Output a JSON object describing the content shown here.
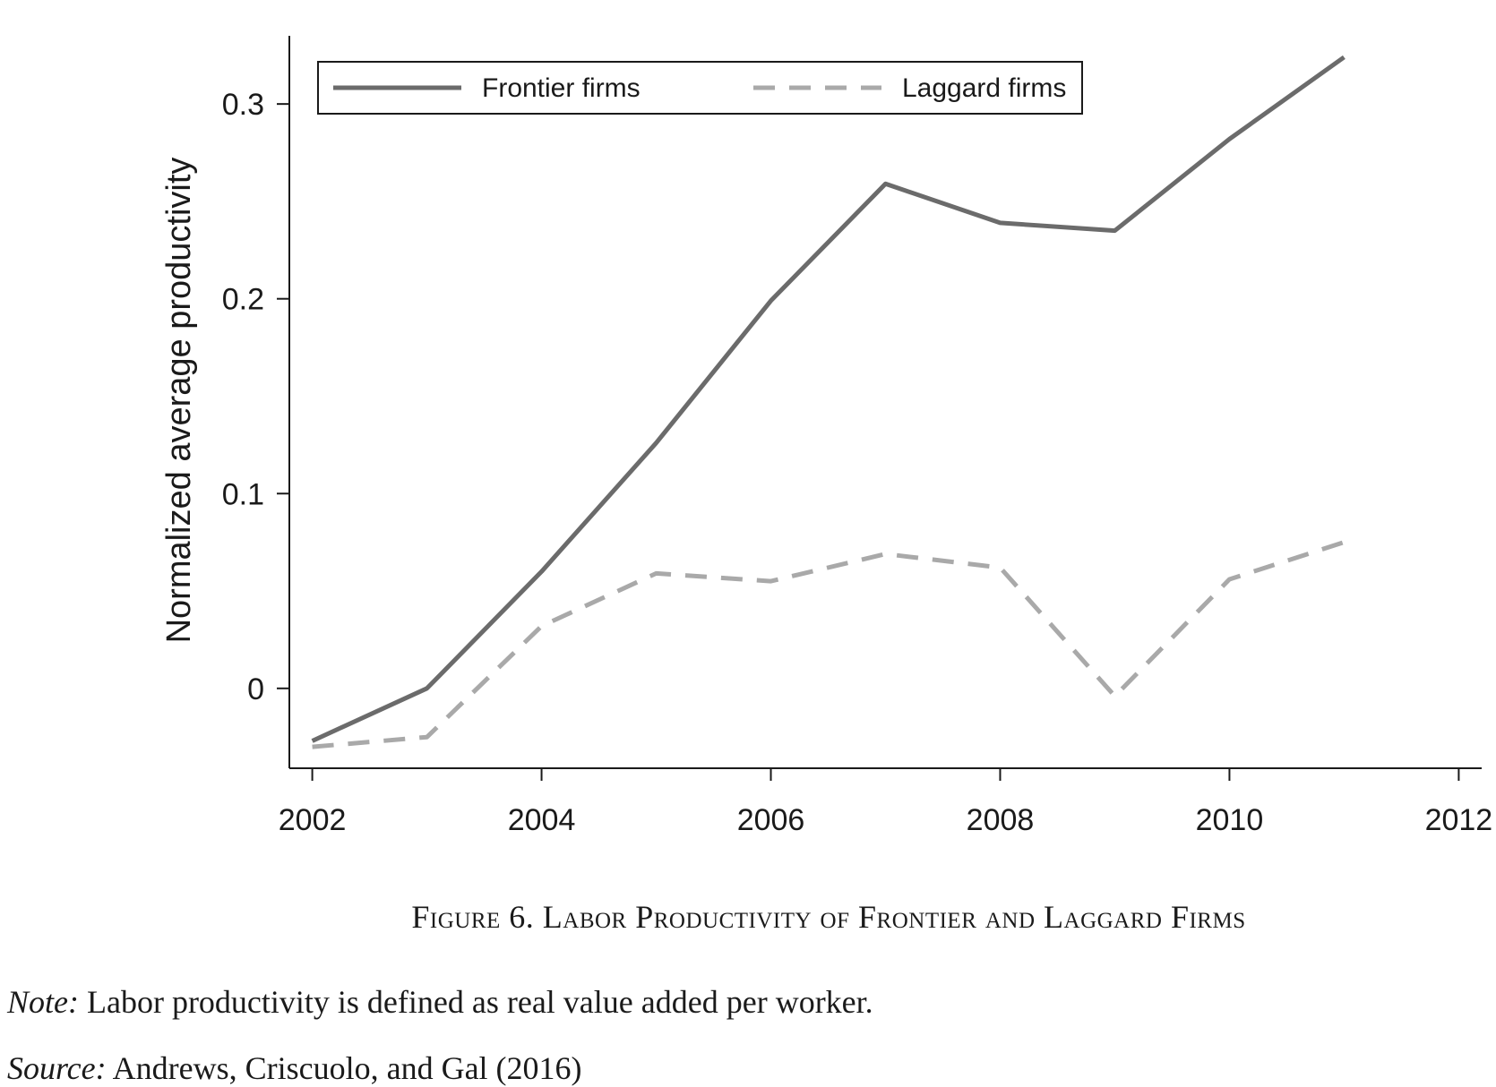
{
  "chart_data": {
    "type": "line",
    "title": "",
    "xlabel": "",
    "ylabel": "Normalized average productivity",
    "x_ticks": [
      2002,
      2004,
      2006,
      2008,
      2010,
      2012
    ],
    "y_ticks": [
      0,
      0.1,
      0.2,
      0.3
    ],
    "y_tick_labels": [
      "0",
      "0.1",
      "0.2",
      "0.3"
    ],
    "xlim": [
      2001.8,
      2012.2
    ],
    "ylim": [
      -0.041,
      0.335
    ],
    "legend_position": "top",
    "x": [
      2002,
      2003,
      2004,
      2005,
      2006,
      2007,
      2008,
      2009,
      2010,
      2011
    ],
    "series": [
      {
        "name": "Frontier firms",
        "style": "solid",
        "color": "#6b6b6b",
        "values": [
          -0.027,
          0.0,
          0.06,
          0.126,
          0.199,
          0.259,
          0.239,
          0.235,
          0.282,
          0.324
        ]
      },
      {
        "name": "Laggard firms",
        "style": "dashed",
        "color": "#a9a9a9",
        "values": [
          -0.03,
          -0.025,
          0.032,
          0.059,
          0.055,
          0.069,
          0.062,
          -0.004,
          0.056,
          0.075
        ]
      }
    ]
  },
  "caption": {
    "label": "Figure 6. Labor Productivity of Frontier and Laggard Firms"
  },
  "note": {
    "label": "Note:",
    "text": " Labor productivity is defined as real value added per worker."
  },
  "source": {
    "label": "Source:",
    "text": " Andrews, Criscuolo, and Gal (2016)"
  }
}
